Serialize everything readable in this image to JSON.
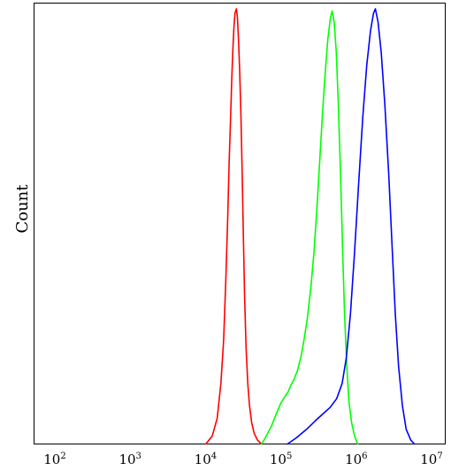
{
  "chart_data": {
    "type": "line",
    "title": "",
    "xlabel": "",
    "ylabel": "Count",
    "xscale": "log",
    "xlim": [
      100,
      10000000
    ],
    "ylim": [
      0,
      100
    ],
    "grid": false,
    "legend": "none",
    "x_ticks": [
      {
        "value": 100,
        "base": "10",
        "exp": "2"
      },
      {
        "value": 1000,
        "base": "10",
        "exp": "3"
      },
      {
        "value": 10000,
        "base": "10",
        "exp": "4"
      },
      {
        "value": 100000,
        "base": "10",
        "exp": "5"
      },
      {
        "value": 1000000,
        "base": "10",
        "exp": "6"
      },
      {
        "value": 10000000,
        "base": "10",
        "exp": "7"
      }
    ],
    "series": [
      {
        "color": "#ff0000",
        "points": [
          [
            10000,
            0
          ],
          [
            12300,
            2
          ],
          [
            14300,
            6
          ],
          [
            16000,
            14
          ],
          [
            17400,
            24
          ],
          [
            18600,
            38
          ],
          [
            19700,
            52
          ],
          [
            20500,
            64
          ],
          [
            21400,
            74
          ],
          [
            22300,
            84
          ],
          [
            23100,
            91
          ],
          [
            23900,
            96
          ],
          [
            24600,
            99
          ],
          [
            25700,
            100
          ],
          [
            26500,
            98
          ],
          [
            27400,
            93
          ],
          [
            28400,
            86
          ],
          [
            29500,
            76
          ],
          [
            30600,
            63
          ],
          [
            31800,
            48
          ],
          [
            33000,
            34
          ],
          [
            34600,
            22
          ],
          [
            36400,
            14
          ],
          [
            38300,
            9
          ],
          [
            41000,
            5
          ],
          [
            44300,
            2.5
          ],
          [
            49000,
            1
          ],
          [
            56000,
            0
          ]
        ]
      },
      {
        "color": "#00ff00",
        "points": [
          [
            55000,
            0
          ],
          [
            62000,
            1.5
          ],
          [
            74000,
            4
          ],
          [
            87000,
            7
          ],
          [
            100000,
            9.5
          ],
          [
            113000,
            11
          ],
          [
            124000,
            12
          ],
          [
            135000,
            13.5
          ],
          [
            150000,
            15
          ],
          [
            166000,
            17
          ],
          [
            184000,
            20
          ],
          [
            203000,
            24
          ],
          [
            225000,
            29
          ],
          [
            250000,
            36
          ],
          [
            275000,
            44
          ],
          [
            300000,
            54
          ],
          [
            330000,
            66
          ],
          [
            360000,
            77
          ],
          [
            390000,
            86
          ],
          [
            420000,
            93
          ],
          [
            455000,
            98
          ],
          [
            480000,
            99.5
          ],
          [
            510000,
            97
          ],
          [
            545000,
            90
          ],
          [
            580000,
            78
          ],
          [
            620000,
            62
          ],
          [
            660000,
            45
          ],
          [
            700000,
            30
          ],
          [
            750000,
            18
          ],
          [
            800000,
            10
          ],
          [
            870000,
            5
          ],
          [
            950000,
            2
          ],
          [
            1050000,
            0
          ]
        ]
      },
      {
        "color": "#0000ff",
        "points": [
          [
            120000,
            0
          ],
          [
            160000,
            1.5
          ],
          [
            220000,
            3.5
          ],
          [
            290000,
            5.5
          ],
          [
            360000,
            7
          ],
          [
            450000,
            8.5
          ],
          [
            550000,
            10.5
          ],
          [
            650000,
            14
          ],
          [
            740000,
            20
          ],
          [
            840000,
            30
          ],
          [
            950000,
            44
          ],
          [
            1080000,
            60
          ],
          [
            1220000,
            75
          ],
          [
            1380000,
            87
          ],
          [
            1550000,
            95
          ],
          [
            1700000,
            99
          ],
          [
            1800000,
            100
          ],
          [
            1950000,
            97
          ],
          [
            2150000,
            90
          ],
          [
            2400000,
            78
          ],
          [
            2700000,
            62
          ],
          [
            3000000,
            45
          ],
          [
            3300000,
            30
          ],
          [
            3650000,
            18
          ],
          [
            4100000,
            9
          ],
          [
            4600000,
            3.5
          ],
          [
            5300000,
            1
          ],
          [
            6000000,
            0
          ]
        ]
      }
    ]
  }
}
